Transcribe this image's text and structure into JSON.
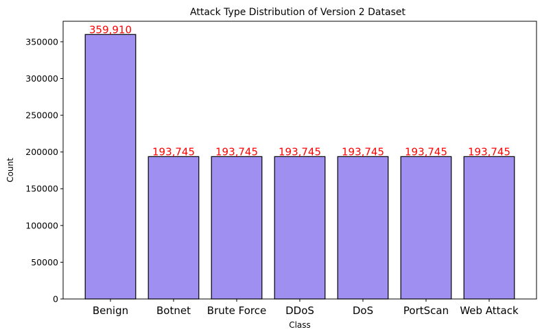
{
  "chart_data": {
    "type": "bar",
    "title": "Attack Type Distribution of Version 2 Dataset",
    "xlabel": "Class",
    "ylabel": "Count",
    "categories": [
      "Benign",
      "Botnet",
      "Brute Force",
      "DDoS",
      "DoS",
      "PortScan",
      "Web Attack"
    ],
    "values": [
      359910,
      193745,
      193745,
      193745,
      193745,
      193745,
      193745
    ],
    "data_labels": [
      "359,910",
      "193,745",
      "193,745",
      "193,745",
      "193,745",
      "193,745",
      "193,745"
    ],
    "yticks": [
      0,
      50000,
      100000,
      150000,
      200000,
      250000,
      300000,
      350000
    ],
    "ytick_labels": [
      "0",
      "50000",
      "100000",
      "150000",
      "200000",
      "250000",
      "300000",
      "350000"
    ],
    "ylim": [
      0,
      377906
    ],
    "grid": false,
    "legend": "none",
    "colors": {
      "bar_fill": "#9e8ff0",
      "bar_edge": "#000000",
      "data_label": "#ff0000",
      "axis": "#000000"
    }
  }
}
